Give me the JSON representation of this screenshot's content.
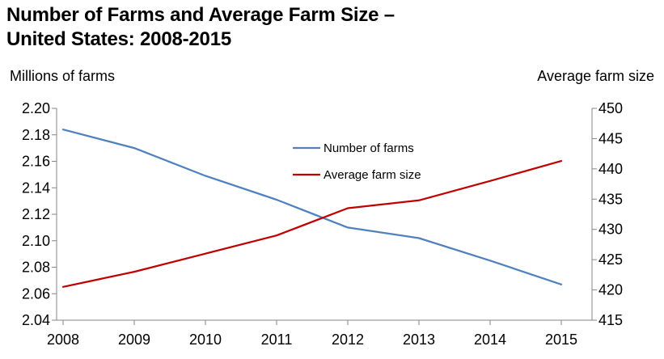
{
  "chart_data": {
    "type": "line",
    "title_line1": "Number of Farms and Average Farm Size –",
    "title_line2": "United States: 2008-2015",
    "ylabel_left": "Millions of farms",
    "ylabel_right": "Average farm size",
    "categories": [
      "2008",
      "2009",
      "2010",
      "2011",
      "2012",
      "2013",
      "2014",
      "2015"
    ],
    "ylim_left": [
      2.04,
      2.2
    ],
    "ylim_right": [
      415,
      450
    ],
    "yticks_left": [
      "2.04",
      "2.06",
      "2.08",
      "2.10",
      "2.12",
      "2.14",
      "2.16",
      "2.18",
      "2.20"
    ],
    "yticks_right": [
      "415",
      "420",
      "425",
      "430",
      "435",
      "440",
      "445",
      "450"
    ],
    "grid": false,
    "legend_position": "center",
    "series": [
      {
        "name": "Number of farms",
        "axis": "left",
        "color": "#4F81BD",
        "values": [
          2.184,
          2.17,
          2.149,
          2.131,
          2.11,
          2.102,
          2.085,
          2.067
        ]
      },
      {
        "name": "Average farm size",
        "axis": "right",
        "color": "#C00000",
        "values": [
          420.5,
          423.0,
          426.0,
          429.0,
          433.5,
          434.8,
          438.0,
          441.3
        ]
      }
    ]
  }
}
